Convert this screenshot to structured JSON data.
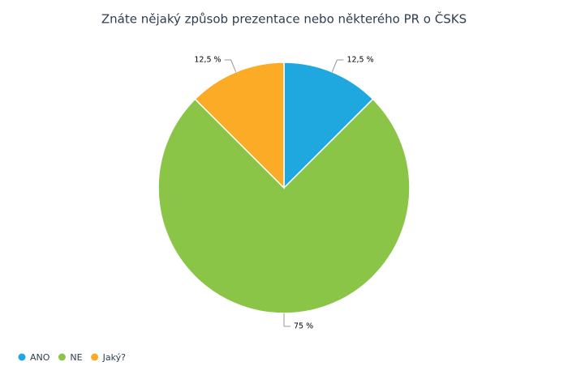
{
  "chart_data": {
    "type": "pie",
    "title": "Znáte nějaký způsob prezentace nebo některého PR o ČSKS",
    "categories": [
      "ANO",
      "NE",
      "Jaký?"
    ],
    "values": [
      12.5,
      75,
      12.5
    ],
    "value_labels": [
      "12,5 %",
      "75 %",
      "12,5 %"
    ],
    "colors": [
      "#1fa8e0",
      "#8bc548",
      "#fbab25"
    ],
    "legend": "bottom-left"
  }
}
